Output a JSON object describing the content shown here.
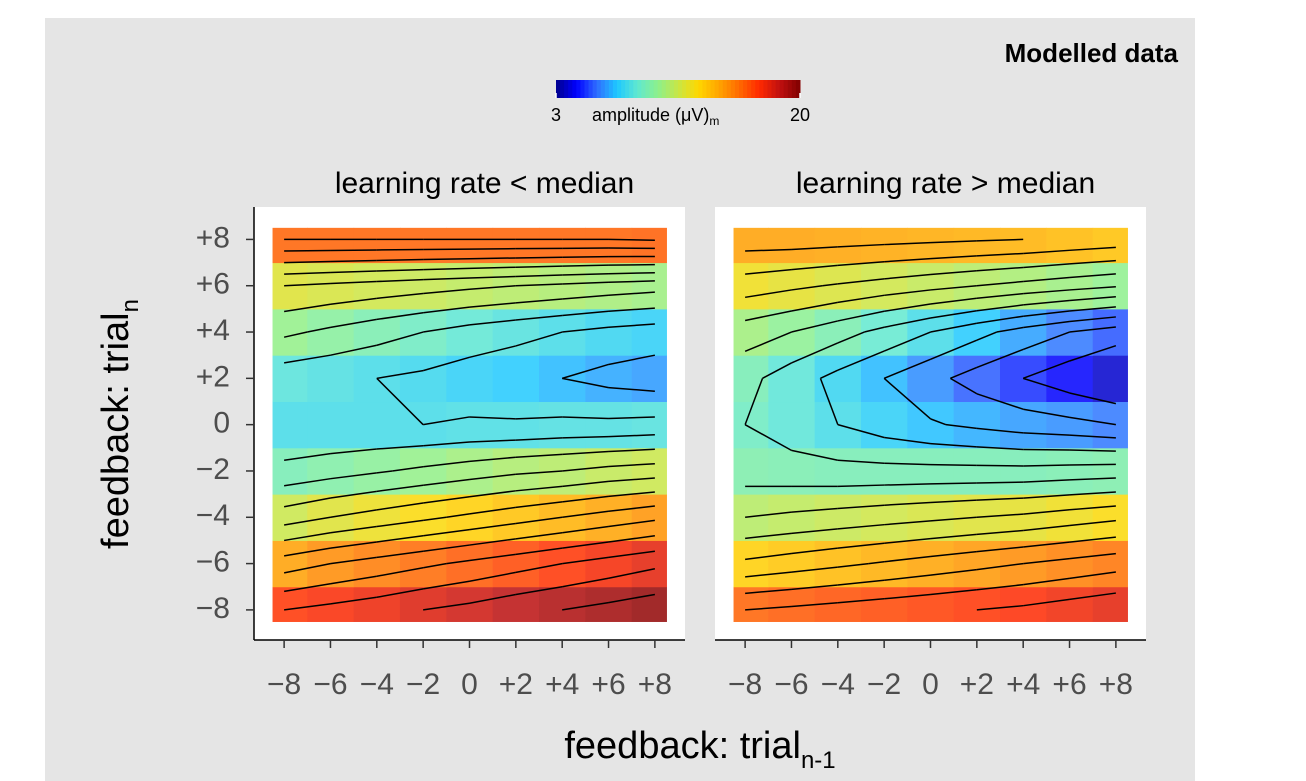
{
  "chart_data": {
    "type": "heatmap",
    "title": "Modelled data",
    "x_label": "feedback: trial",
    "x_label_sub": "n-1",
    "y_label": "feedback: trial",
    "y_label_sub": "n",
    "colorbar": {
      "title": "amplitude (μV)",
      "title_sub": "m",
      "zlim": [
        3,
        20
      ],
      "ticks": [
        3,
        20
      ],
      "colors": [
        "#00008b",
        "#0000ff",
        "#2f6cff",
        "#1ec8ff",
        "#5fe8d0",
        "#8cf08c",
        "#c8e646",
        "#ffd700",
        "#ffa500",
        "#ff6a00",
        "#ff2a00",
        "#c01010",
        "#800000"
      ]
    },
    "x": [
      -8,
      -6,
      -4,
      -2,
      0,
      2,
      4,
      6,
      8
    ],
    "y": [
      -8,
      -6,
      -4,
      -2,
      0,
      2,
      4,
      6,
      8
    ],
    "xlim": [
      -9.3,
      9.3
    ],
    "ylim": [
      -9.3,
      9.4
    ],
    "xticks": [
      {
        "value": -8,
        "label": "−8"
      },
      {
        "value": -6,
        "label": "−6"
      },
      {
        "value": -4,
        "label": "−4"
      },
      {
        "value": -2,
        "label": "−2"
      },
      0,
      {
        "value": 2,
        "label": "+2"
      },
      {
        "value": 4,
        "label": "+4"
      },
      {
        "value": 6,
        "label": "+6"
      },
      {
        "value": 8,
        "label": "+8"
      }
    ],
    "yticks": [
      {
        "value": -8,
        "label": "−8"
      },
      {
        "value": -6,
        "label": "−6"
      },
      {
        "value": -4,
        "label": "−4"
      },
      {
        "value": -2,
        "label": "−2"
      },
      0,
      {
        "value": 2,
        "label": "+2"
      },
      {
        "value": 4,
        "label": "+4"
      },
      {
        "value": 6,
        "label": "+6"
      },
      {
        "value": 8,
        "label": "+8"
      }
    ],
    "contour_levels": [
      5,
      6,
      7,
      8,
      9,
      10,
      11,
      12,
      13,
      14,
      15,
      16,
      17,
      18,
      19
    ],
    "panels": [
      {
        "title": "learning rate < median",
        "values": [
          [
            17,
            17.3,
            17.6,
            18,
            18.3,
            18.7,
            19,
            19.3,
            19.6
          ],
          [
            14.5,
            15,
            15.4,
            15.8,
            16.2,
            16.6,
            17,
            17.4,
            17.8
          ],
          [
            11.5,
            12,
            12.4,
            12.8,
            13.2,
            13.6,
            14,
            14.4,
            14.8
          ],
          [
            9.3,
            9.6,
            9.9,
            10.2,
            10.5,
            10.8,
            11,
            11.3,
            11.5
          ],
          [
            8,
            8,
            8,
            8,
            8.1,
            8.1,
            8.2,
            8.2,
            8.3
          ],
          [
            8.4,
            8.2,
            8,
            7.8,
            7.5,
            7.3,
            7,
            6.7,
            6.5
          ],
          [
            10.2,
            9.8,
            9.4,
            9,
            8.6,
            8.3,
            8,
            7.7,
            7.5
          ],
          [
            12,
            11.8,
            11.6,
            11.4,
            11.2,
            11,
            10.8,
            10.6,
            10.4
          ],
          [
            16,
            16,
            16,
            16,
            16,
            16,
            16,
            16,
            16.1
          ]
        ]
      },
      {
        "title": "learning rate > median",
        "values": [
          [
            16,
            16.2,
            16.4,
            16.6,
            16.8,
            17,
            17.2,
            17.5,
            17.8
          ],
          [
            13.2,
            13.5,
            13.8,
            14.1,
            14.4,
            14.7,
            15,
            15.3,
            15.6
          ],
          [
            11,
            11.2,
            11.4,
            11.6,
            11.8,
            12,
            12.2,
            12.5,
            12.8
          ],
          [
            9.5,
            9.4,
            9.3,
            9.3,
            9.3,
            9.3,
            9.3,
            9.4,
            9.5
          ],
          [
            9,
            8.5,
            8,
            7.5,
            7.1,
            6.8,
            6.5,
            6.3,
            6
          ],
          [
            9.3,
            8.5,
            7.7,
            7,
            6.3,
            5.6,
            5,
            4.4,
            3.8
          ],
          [
            10.5,
            10,
            9.4,
            8.7,
            8,
            7.3,
            6.6,
            6,
            5.5
          ],
          [
            12.5,
            12.2,
            11.9,
            11.6,
            11.3,
            11,
            10.7,
            10.4,
            10.1
          ],
          [
            14.5,
            14.5,
            14.4,
            14.3,
            14.2,
            14.1,
            14,
            13.8,
            13.6
          ]
        ]
      }
    ]
  }
}
